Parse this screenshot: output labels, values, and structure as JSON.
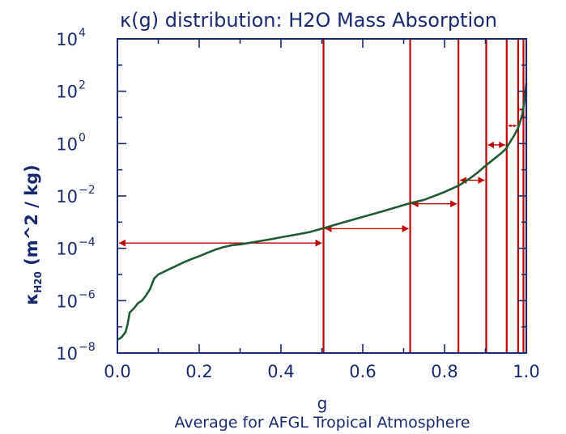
{
  "chart_data": {
    "type": "line",
    "title": "κ(g) distribution: H2O Mass Absorption",
    "xlabel": "g",
    "subtitle": "Average for AFGL Tropical Atmosphere",
    "ylabel": "κH2O (m^2 / kg)",
    "x_ticks": [
      "0.0",
      "0.2",
      "0.4",
      "0.6",
      "0.8",
      "1.0"
    ],
    "y_ticks": [
      {
        "base": "10",
        "exp": "−8",
        "value": -8
      },
      {
        "base": "10",
        "exp": "−6",
        "value": -6
      },
      {
        "base": "10",
        "exp": "−4",
        "value": -4
      },
      {
        "base": "10",
        "exp": "−2",
        "value": -2
      },
      {
        "base": "10",
        "exp": "0",
        "value": 0
      },
      {
        "base": "10",
        "exp": "2",
        "value": 2
      },
      {
        "base": "10",
        "exp": "4",
        "value": 4
      }
    ],
    "xlim": [
      0,
      1
    ],
    "ylim_log10": [
      -8,
      4
    ],
    "y_scale": "log",
    "curve": {
      "color": "#1f5a32",
      "points": [
        [
          0.0,
          -7.5
        ],
        [
          0.01,
          -7.4
        ],
        [
          0.02,
          -7.2
        ],
        [
          0.025,
          -6.9
        ],
        [
          0.03,
          -6.45
        ],
        [
          0.04,
          -6.3
        ],
        [
          0.05,
          -6.1
        ],
        [
          0.06,
          -6.0
        ],
        [
          0.07,
          -5.8
        ],
        [
          0.08,
          -5.55
        ],
        [
          0.09,
          -5.15
        ],
        [
          0.1,
          -5.0
        ],
        [
          0.12,
          -4.85
        ],
        [
          0.14,
          -4.7
        ],
        [
          0.16,
          -4.55
        ],
        [
          0.18,
          -4.42
        ],
        [
          0.2,
          -4.3
        ],
        [
          0.22,
          -4.17
        ],
        [
          0.24,
          -4.05
        ],
        [
          0.26,
          -3.95
        ],
        [
          0.28,
          -3.88
        ],
        [
          0.3,
          -3.85
        ],
        [
          0.32,
          -3.8
        ],
        [
          0.35,
          -3.72
        ],
        [
          0.38,
          -3.64
        ],
        [
          0.41,
          -3.55
        ],
        [
          0.44,
          -3.47
        ],
        [
          0.47,
          -3.38
        ],
        [
          0.5,
          -3.25
        ],
        [
          0.55,
          -3.02
        ],
        [
          0.6,
          -2.8
        ],
        [
          0.65,
          -2.58
        ],
        [
          0.7,
          -2.35
        ],
        [
          0.715,
          -2.28
        ],
        [
          0.75,
          -2.15
        ],
        [
          0.8,
          -1.85
        ],
        [
          0.835,
          -1.6
        ],
        [
          0.86,
          -1.35
        ],
        [
          0.88,
          -1.12
        ],
        [
          0.9,
          -0.85
        ],
        [
          0.92,
          -0.6
        ],
        [
          0.94,
          -0.35
        ],
        [
          0.95,
          -0.2
        ],
        [
          0.96,
          0.05
        ],
        [
          0.97,
          0.3
        ],
        [
          0.98,
          0.6
        ],
        [
          0.99,
          1.1
        ],
        [
          0.995,
          1.6
        ],
        [
          1.0,
          2.3
        ]
      ]
    },
    "bands": {
      "color": "#c00000",
      "edges": [
        0.0,
        0.504,
        0.716,
        0.834,
        0.902,
        0.952,
        0.98,
        0.993,
        1.0
      ],
      "arrow_levels_log10": [
        -3.8,
        -3.25,
        -2.3,
        -1.4,
        -0.05,
        0.68,
        1.3
      ]
    }
  }
}
